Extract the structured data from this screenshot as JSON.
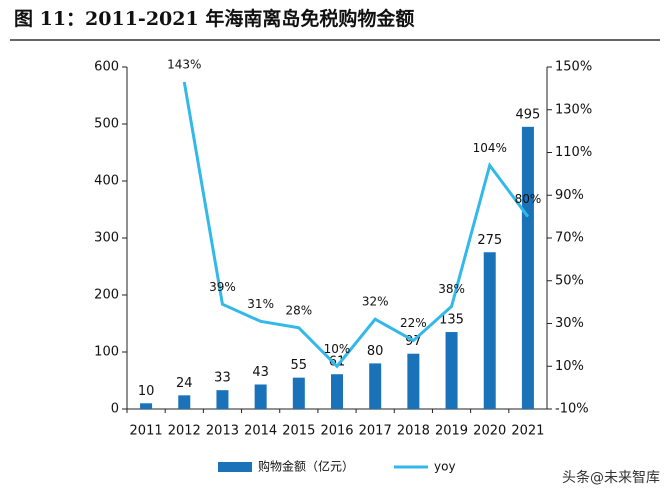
{
  "chart_data": {
    "type": "bar",
    "title": "图 11：2011-2021 年海南离岛免税购物金额",
    "categories": [
      "2011",
      "2012",
      "2013",
      "2014",
      "2015",
      "2016",
      "2017",
      "2018",
      "2019",
      "2020",
      "2021"
    ],
    "series": [
      {
        "name": "购物金额（亿元）",
        "type": "bar",
        "color": "#1a72b9",
        "values": [
          10,
          24,
          33,
          43,
          55,
          61,
          80,
          97,
          135,
          275,
          495
        ]
      },
      {
        "name": "yoy",
        "type": "line",
        "axis": "y2",
        "color": "#33b8ea",
        "values": [
          null,
          143,
          39,
          31,
          28,
          10,
          32,
          22,
          38,
          104,
          80
        ],
        "value_labels": [
          null,
          "143%",
          "39%",
          "31%",
          "28%",
          "10%",
          "32%",
          "22%",
          "38%",
          "104%",
          "80%"
        ]
      }
    ],
    "ylim": [
      0,
      600
    ],
    "yticks": [
      0,
      100,
      200,
      300,
      400,
      500,
      600
    ],
    "y2lim": [
      -10,
      150
    ],
    "y2ticks": [
      {
        "value": -10,
        "label": "-10%"
      },
      {
        "value": 10,
        "label": "10%"
      },
      {
        "value": 30,
        "label": "30%"
      },
      {
        "value": 50,
        "label": "50%"
      },
      {
        "value": 70,
        "label": "70%"
      },
      {
        "value": 90,
        "label": "90%"
      },
      {
        "value": 110,
        "label": "110%"
      },
      {
        "value": 130,
        "label": "130%"
      },
      {
        "value": 150,
        "label": "150%"
      }
    ],
    "legend": "bottom",
    "watermark": "头条@未来智库"
  }
}
